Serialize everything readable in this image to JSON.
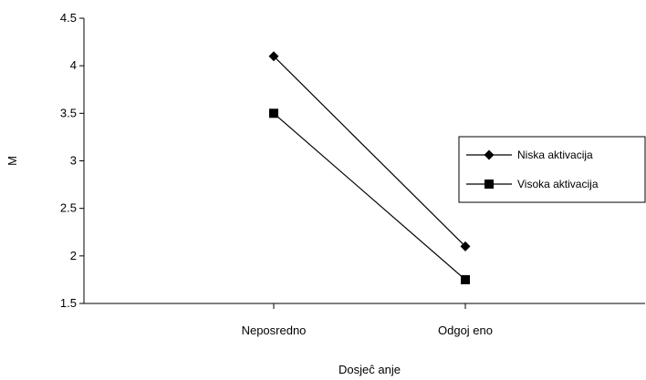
{
  "chart_data": {
    "type": "line",
    "categories": [
      "Neposredno",
      "Odgoj eno"
    ],
    "series": [
      {
        "name": "Niska aktivacija",
        "values": [
          4.1,
          2.1
        ],
        "marker": "diamond",
        "color": "#000000"
      },
      {
        "name": "Visoka aktivacija",
        "values": [
          3.5,
          1.75
        ],
        "marker": "square",
        "color": "#000000"
      }
    ],
    "title": "",
    "xlabel": "Dosjeĉ anje",
    "ylabel": "M",
    "ylim": [
      1.5,
      4.5
    ],
    "yticks": [
      "1.5",
      "2",
      "2.5",
      "3",
      "3.5",
      "4",
      "4.5"
    ],
    "grid": false,
    "legend_position": "right"
  }
}
